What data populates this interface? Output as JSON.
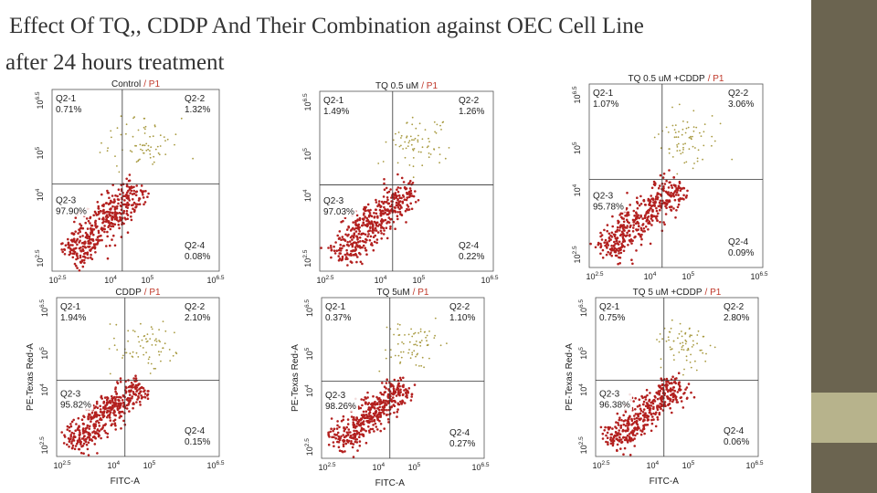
{
  "title_lines": [
    "Effect Of  TQ,, CDDP And Their Combination against  OEC Cell Line",
    "after 24 hours treatment"
  ],
  "axis_ticks": [
    {
      "base": "10",
      "exp": "2.5"
    },
    {
      "base": "10",
      "exp": "4"
    },
    {
      "base": "10",
      "exp": "5"
    },
    {
      "base": "10",
      "exp": "6.5"
    }
  ],
  "x_axis_label": "FITC-A",
  "y_axis_label": "PE-Texas Red-A",
  "plots": [
    {
      "name": "Control",
      "gate": "/ P1",
      "quadrants": [
        {
          "name": "Q2-1",
          "pct": "0.71%"
        },
        {
          "name": "Q2-2",
          "pct": "1.32%"
        },
        {
          "name": "Q2-3",
          "pct": "97.90%"
        },
        {
          "name": "Q2-4",
          "pct": "0.08%"
        }
      ]
    },
    {
      "name": "TQ 0.5 uM",
      "gate": "/ P1",
      "quadrants": [
        {
          "name": "Q2-1",
          "pct": "1.49%"
        },
        {
          "name": "Q2-2",
          "pct": "1.26%"
        },
        {
          "name": "Q2-3",
          "pct": "97.03%"
        },
        {
          "name": "Q2-4",
          "pct": "0.22%"
        }
      ]
    },
    {
      "name": "TQ 0.5 uM +CDDP",
      "gate": "/ P1",
      "quadrants": [
        {
          "name": "Q2-1",
          "pct": "1.07%"
        },
        {
          "name": "Q2-2",
          "pct": "3.06%"
        },
        {
          "name": "Q2-3",
          "pct": "95.78%"
        },
        {
          "name": "Q2-4",
          "pct": "0.09%"
        }
      ]
    },
    {
      "name": "CDDP",
      "gate": "/ P1",
      "quadrants": [
        {
          "name": "Q2-1",
          "pct": "1.94%"
        },
        {
          "name": "Q2-2",
          "pct": "2.10%"
        },
        {
          "name": "Q2-3",
          "pct": "95.82%"
        },
        {
          "name": "Q2-4",
          "pct": "0.15%"
        }
      ]
    },
    {
      "name": "TQ 5uM",
      "gate": "/ P1",
      "quadrants": [
        {
          "name": "Q2-1",
          "pct": "0.37%"
        },
        {
          "name": "Q2-2",
          "pct": "1.10%"
        },
        {
          "name": "Q2-3",
          "pct": "98.26%"
        },
        {
          "name": "Q2-4",
          "pct": "0.27%"
        }
      ]
    },
    {
      "name": "TQ 5 uM +CDDP",
      "gate": "/ P1",
      "quadrants": [
        {
          "name": "Q2-1",
          "pct": "0.75%"
        },
        {
          "name": "Q2-2",
          "pct": "2.80%"
        },
        {
          "name": "Q2-3",
          "pct": "96.38%"
        },
        {
          "name": "Q2-4",
          "pct": "0.06%"
        }
      ]
    }
  ]
}
